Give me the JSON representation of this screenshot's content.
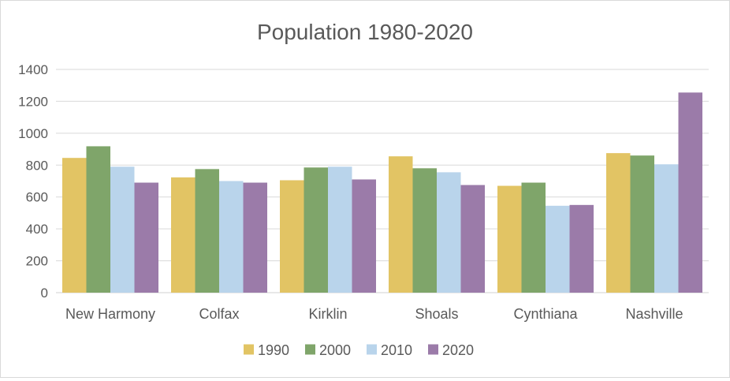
{
  "chart_data": {
    "type": "bar",
    "title": "Population 1980-2020",
    "xlabel": "",
    "ylabel": "",
    "ylim": [
      0,
      1400
    ],
    "yticks": [
      0,
      200,
      400,
      600,
      800,
      1000,
      1200,
      1400
    ],
    "grid": true,
    "legend_position": "bottom",
    "categories": [
      "New Harmony",
      "Colfax",
      "Kirklin",
      "Shoals",
      "Cynthiana",
      "Nashville"
    ],
    "series": [
      {
        "name": "1990",
        "color": "#E2C464",
        "values": [
          845,
          723,
          705,
          855,
          670,
          875
        ]
      },
      {
        "name": "2000",
        "color": "#7FA56A",
        "values": [
          918,
          775,
          785,
          780,
          690,
          860
        ]
      },
      {
        "name": "2010",
        "color": "#B9D4EB",
        "values": [
          790,
          700,
          790,
          755,
          545,
          805
        ]
      },
      {
        "name": "2020",
        "color": "#9B7BA9",
        "values": [
          690,
          690,
          710,
          675,
          550,
          1255
        ]
      }
    ]
  }
}
